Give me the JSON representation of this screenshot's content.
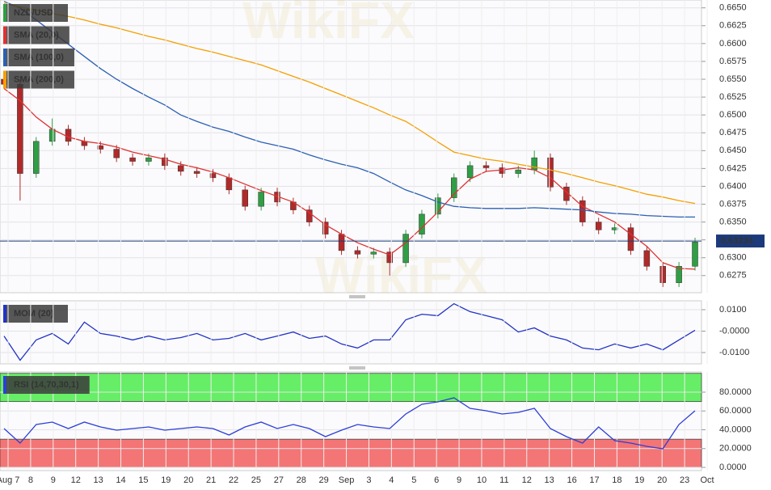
{
  "chart_data": [
    {
      "type": "candlestick",
      "title": "NZD/USD",
      "title_color": "#2f9e44",
      "open": [
        0.655,
        0.6543,
        0.6418,
        0.6463,
        0.648,
        0.6463,
        0.6457,
        0.6452,
        0.644,
        0.6435,
        0.644,
        0.6429,
        0.6421,
        0.6418,
        0.6412,
        0.6395,
        0.6372,
        0.6392,
        0.6378,
        0.6367,
        0.635,
        0.6333,
        0.631,
        0.6305,
        0.6308,
        0.6293,
        0.6333,
        0.6361,
        0.6384,
        0.6412,
        0.6429,
        0.6426,
        0.6418,
        0.6423,
        0.644,
        0.6399,
        0.638,
        0.635,
        0.6339,
        0.6342,
        0.631,
        0.6288,
        0.6265,
        0.6288
      ],
      "high": [
        0.6556,
        0.6549,
        0.6469,
        0.6495,
        0.6486,
        0.6469,
        0.6463,
        0.6458,
        0.6446,
        0.6446,
        0.6446,
        0.6435,
        0.6427,
        0.6424,
        0.6418,
        0.6401,
        0.6398,
        0.6398,
        0.6384,
        0.6373,
        0.6356,
        0.6339,
        0.6316,
        0.6314,
        0.6314,
        0.6339,
        0.6367,
        0.639,
        0.6418,
        0.6435,
        0.6435,
        0.6432,
        0.6429,
        0.645,
        0.6446,
        0.6405,
        0.6386,
        0.6356,
        0.6348,
        0.6348,
        0.6316,
        0.6294,
        0.6294,
        0.6328
      ],
      "low": [
        0.6537,
        0.638,
        0.6412,
        0.6457,
        0.6457,
        0.6451,
        0.6446,
        0.6434,
        0.6429,
        0.6429,
        0.6423,
        0.6415,
        0.6412,
        0.6406,
        0.6389,
        0.6366,
        0.6366,
        0.6372,
        0.6361,
        0.6344,
        0.6327,
        0.6304,
        0.6299,
        0.6299,
        0.6275,
        0.6287,
        0.6327,
        0.6355,
        0.6378,
        0.6406,
        0.642,
        0.6412,
        0.6412,
        0.6417,
        0.6393,
        0.6374,
        0.6344,
        0.6333,
        0.6333,
        0.6304,
        0.6282,
        0.6259,
        0.6259,
        0.6282
      ],
      "close": [
        0.6543,
        0.6418,
        0.6463,
        0.648,
        0.6463,
        0.6457,
        0.6452,
        0.644,
        0.6435,
        0.644,
        0.6429,
        0.6421,
        0.6418,
        0.6412,
        0.6395,
        0.6372,
        0.6392,
        0.6378,
        0.6367,
        0.635,
        0.6333,
        0.631,
        0.6305,
        0.6308,
        0.6293,
        0.6333,
        0.6361,
        0.6384,
        0.6412,
        0.6429,
        0.6426,
        0.6418,
        0.6423,
        0.644,
        0.6399,
        0.638,
        0.635,
        0.6339,
        0.6342,
        0.631,
        0.6288,
        0.6265,
        0.6288,
        0.6322
      ],
      "up_color": "#2f9e44",
      "down_color": "#b02a2a",
      "series": [
        {
          "name": "SMA (20,0)",
          "color": "#e03131",
          "values": [
            0.6537,
            0.652,
            0.6497,
            0.648,
            0.6469,
            0.6463,
            0.646,
            0.6455,
            0.6448,
            0.6443,
            0.6438,
            0.6431,
            0.6426,
            0.642,
            0.6412,
            0.6403,
            0.6394,
            0.6386,
            0.6378,
            0.6363,
            0.6346,
            0.6333,
            0.6321,
            0.6312,
            0.6304,
            0.6321,
            0.6342,
            0.6364,
            0.6389,
            0.641,
            0.6421,
            0.6423,
            0.6426,
            0.6423,
            0.6412,
            0.6392,
            0.6372,
            0.6361,
            0.635,
            0.6333,
            0.6316,
            0.6293,
            0.6285,
            0.6284
          ]
        },
        {
          "name": "SMA (100,0)",
          "color": "#2b5fb3",
          "values": [
            0.6659,
            0.665,
            0.6633,
            0.6616,
            0.6599,
            0.6582,
            0.6565,
            0.655,
            0.6537,
            0.6525,
            0.6514,
            0.65,
            0.6491,
            0.6483,
            0.6477,
            0.6469,
            0.6462,
            0.6457,
            0.6452,
            0.6444,
            0.6437,
            0.6431,
            0.6426,
            0.6418,
            0.6406,
            0.6395,
            0.6387,
            0.6378,
            0.6372,
            0.637,
            0.6369,
            0.6369,
            0.6369,
            0.637,
            0.6369,
            0.6368,
            0.6367,
            0.6364,
            0.6362,
            0.6361,
            0.6359,
            0.6358,
            0.6357,
            0.6357
          ]
        },
        {
          "name": "SMA (200,0)",
          "color": "#f59f00",
          "values": [
            0.6656,
            0.6651,
            0.6647,
            0.6642,
            0.6638,
            0.6633,
            0.6627,
            0.6622,
            0.6616,
            0.661,
            0.6605,
            0.6599,
            0.6593,
            0.6588,
            0.6582,
            0.6576,
            0.657,
            0.6562,
            0.6554,
            0.6546,
            0.6537,
            0.6528,
            0.6519,
            0.651,
            0.65,
            0.6491,
            0.6477,
            0.6462,
            0.6448,
            0.6443,
            0.6438,
            0.6435,
            0.6431,
            0.6427,
            0.6423,
            0.6418,
            0.6412,
            0.6406,
            0.6401,
            0.6395,
            0.6389,
            0.6385,
            0.638,
            0.6376
          ]
        }
      ],
      "last_price": 0.63234,
      "last_price_color": "#1c3a7a",
      "ylim": [
        0.6251,
        0.6661
      ],
      "yticks": [
        {
          "value": 0.665,
          "label": "0.6650"
        },
        0.6625,
        {
          "value": 0.66,
          "label": "0.6600"
        },
        0.6575,
        {
          "value": 0.655,
          "label": "0.6550"
        },
        0.6525,
        {
          "value": 0.65,
          "label": "0.6500"
        },
        0.6475,
        {
          "value": 0.645,
          "label": "0.6450"
        },
        0.6425,
        {
          "value": 0.64,
          "label": "0.6400"
        },
        0.6375,
        {
          "value": 0.635,
          "label": "0.6350"
        },
        0.6325,
        {
          "value": 0.63,
          "label": "0.6300"
        },
        0.6275
      ],
      "grid": true,
      "watermark": "WikiFX"
    },
    {
      "type": "line",
      "series": [
        {
          "name": "MOM (20)",
          "color": "#2233c4",
          "values": [
            -0.0023,
            -0.0136,
            -0.0041,
            -0.0011,
            -0.006,
            0.0042,
            -0.0011,
            -0.0023,
            -0.0041,
            -0.0023,
            -0.0041,
            -0.003,
            -0.0011,
            -0.0041,
            -0.0034,
            -0.0011,
            -0.0041,
            -0.0023,
            -0.0004,
            -0.0034,
            -0.0023,
            -0.006,
            -0.0079,
            -0.0041,
            -0.0041,
            0.0053,
            0.0079,
            0.0072,
            0.0128,
            0.0091,
            0.0072,
            0.0053,
            -0.0004,
            0.0015,
            -0.0023,
            -0.0041,
            -0.0079,
            -0.0087,
            -0.006,
            -0.0079,
            -0.006,
            -0.0087,
            -0.0041,
            0.0004
          ]
        }
      ],
      "ylim": [
        -0.01528,
        0.01415
      ],
      "yticks": [
        {
          "value": 0.01,
          "label": "0.0100"
        },
        {
          "value": 0,
          "label": "-0.0000"
        },
        {
          "value": -0.01,
          "label": "-0.0100"
        }
      ],
      "grid": true
    },
    {
      "type": "line",
      "series": [
        {
          "name": "RSI (14,70,30,1)",
          "color": "#2c3fd6",
          "values": [
            41.3,
            25.8,
            45.6,
            48.2,
            41.3,
            48.2,
            43.0,
            39.6,
            41.3,
            43.0,
            39.6,
            41.3,
            43.0,
            41.3,
            34.4,
            43.0,
            48.2,
            41.3,
            45.6,
            41.3,
            32.7,
            39.6,
            45.6,
            43.0,
            41.3,
            56.8,
            67.1,
            69.7,
            74.0,
            62.8,
            60.2,
            56.8,
            58.5,
            62.8,
            41.3,
            32.7,
            25.8,
            43.0,
            28.4,
            25.8,
            22.4,
            19.8,
            45.6,
            60.2
          ]
        }
      ],
      "bands": [
        {
          "from": 70,
          "to": 100,
          "color": "#66ee66"
        },
        {
          "from": 0,
          "to": 30,
          "color": "#f47575"
        }
      ],
      "ylim": [
        -3.4,
        101.5
      ],
      "yticks": [
        {
          "value": 80,
          "label": "80.0000"
        },
        {
          "value": 60,
          "label": "60.0000"
        },
        {
          "value": 40,
          "label": "40.0000"
        },
        {
          "value": 20,
          "label": "20.0000"
        },
        {
          "value": 0,
          "label": "0.0000"
        }
      ],
      "grid": true,
      "x_labels": [
        "Aug 7",
        "8",
        "9",
        "12",
        "13",
        "14",
        "15",
        "19",
        "20",
        "21",
        "22",
        "25",
        "27",
        "28",
        "29",
        "Sep",
        "3",
        "4",
        "5",
        "6",
        "9",
        "10",
        "11",
        "12",
        "13",
        "16",
        "17",
        "18",
        "19",
        "20",
        "23",
        "Oct"
      ]
    }
  ]
}
